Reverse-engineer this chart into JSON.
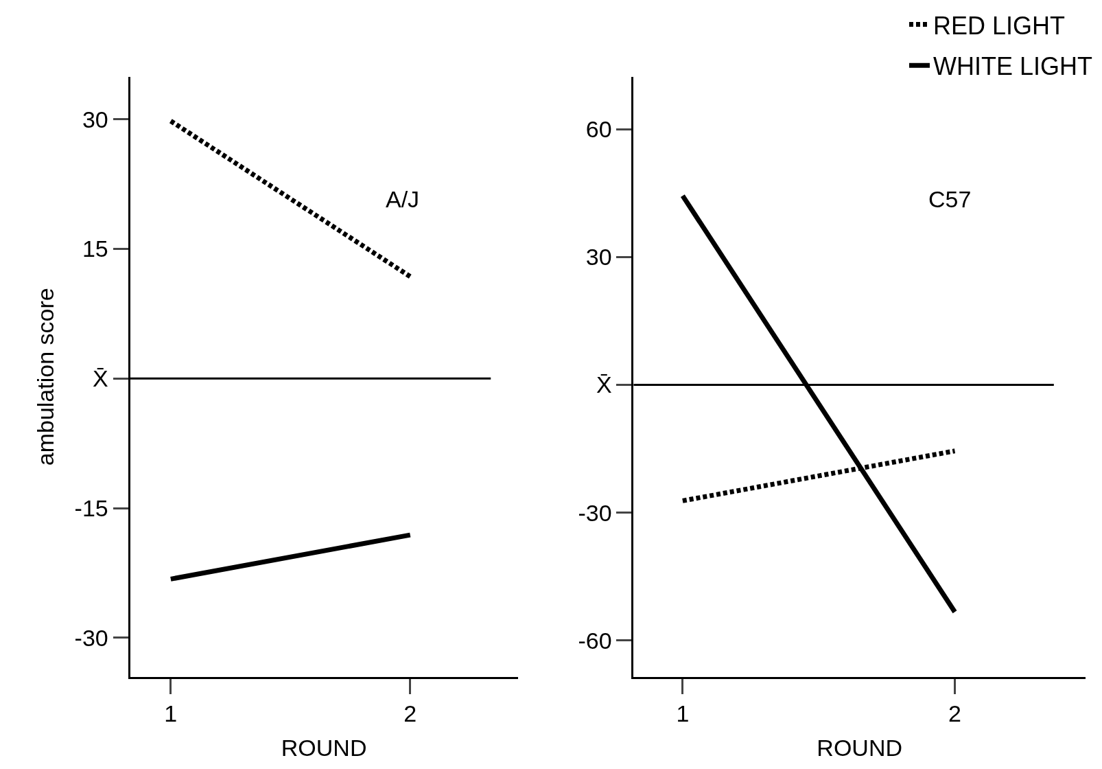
{
  "chart_data": [
    {
      "type": "line",
      "title": "A/J",
      "xlabel": "ROUND",
      "ylabel": "ambulation score",
      "categories": [
        "1",
        "2"
      ],
      "series": [
        {
          "name": "RED LIGHT",
          "color": "#000000",
          "line_style": "dashed",
          "values": [
            29.8,
            11.8
          ]
        },
        {
          "name": "WHITE LIGHT",
          "color": "#000000",
          "line_style": "solid",
          "values": [
            -23.2,
            -18.1
          ]
        }
      ],
      "ylim": [
        -34.5,
        34.9
      ],
      "yticks": [
        -30,
        -15,
        {
          "value": 0,
          "label": "X̄"
        },
        15,
        30
      ],
      "ref_lines": [
        {
          "axis": "y",
          "value": 0,
          "color": "#000000"
        }
      ],
      "legend": "top right",
      "marker": "none"
    },
    {
      "type": "line",
      "title": "C57",
      "xlabel": "ROUND",
      "categories": [
        "1",
        "2"
      ],
      "series": [
        {
          "name": "RED LIGHT",
          "color": "#000000",
          "line_style": "dashed",
          "values": [
            -27.2,
            -15.5
          ]
        },
        {
          "name": "WHITE LIGHT",
          "color": "#000000",
          "line_style": "solid",
          "values": [
            44.4,
            -53.3
          ]
        }
      ],
      "ylim": [
        -68.5,
        72.3
      ],
      "yticks": [
        -60,
        -30,
        {
          "value": 0,
          "label": "X̄"
        },
        30,
        60
      ],
      "ref_lines": [
        {
          "axis": "y",
          "value": 0,
          "color": "#000000"
        }
      ],
      "legend": "top right",
      "marker": "none"
    }
  ]
}
